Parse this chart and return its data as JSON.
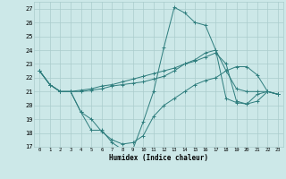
{
  "xlabel": "Humidex (Indice chaleur)",
  "xlim": [
    -0.5,
    23.5
  ],
  "ylim": [
    17,
    27.5
  ],
  "yticks": [
    17,
    18,
    19,
    20,
    21,
    22,
    23,
    24,
    25,
    26,
    27
  ],
  "xticks": [
    0,
    1,
    2,
    3,
    4,
    5,
    6,
    7,
    8,
    9,
    10,
    11,
    12,
    13,
    14,
    15,
    16,
    17,
    18,
    19,
    20,
    21,
    22,
    23
  ],
  "bg_color": "#cce8e8",
  "grid_color": "#aacccc",
  "line_color": "#2e7d7d",
  "lines": [
    [
      22.5,
      21.5,
      21.0,
      21.0,
      19.5,
      18.2,
      18.2,
      17.3,
      16.8,
      16.8,
      18.8,
      21.0,
      24.2,
      27.1,
      26.7,
      26.0,
      25.8,
      24.0,
      22.5,
      21.2,
      21.0,
      21.0,
      21.0,
      20.8
    ],
    [
      22.5,
      21.5,
      21.0,
      21.0,
      19.5,
      19.0,
      18.1,
      17.5,
      17.2,
      17.3,
      17.8,
      19.2,
      20.0,
      20.5,
      21.0,
      21.5,
      21.8,
      22.0,
      22.5,
      22.8,
      22.8,
      22.2,
      21.0,
      20.8
    ],
    [
      22.5,
      21.5,
      21.0,
      21.0,
      21.0,
      21.1,
      21.2,
      21.4,
      21.5,
      21.6,
      21.7,
      21.9,
      22.1,
      22.5,
      23.0,
      23.3,
      23.8,
      24.0,
      20.5,
      20.2,
      20.1,
      20.3,
      21.0,
      20.8
    ],
    [
      22.5,
      21.5,
      21.0,
      21.0,
      21.1,
      21.2,
      21.4,
      21.5,
      21.7,
      21.9,
      22.1,
      22.3,
      22.5,
      22.7,
      23.0,
      23.2,
      23.5,
      23.8,
      23.0,
      20.3,
      20.1,
      20.8,
      21.0,
      20.8
    ]
  ]
}
